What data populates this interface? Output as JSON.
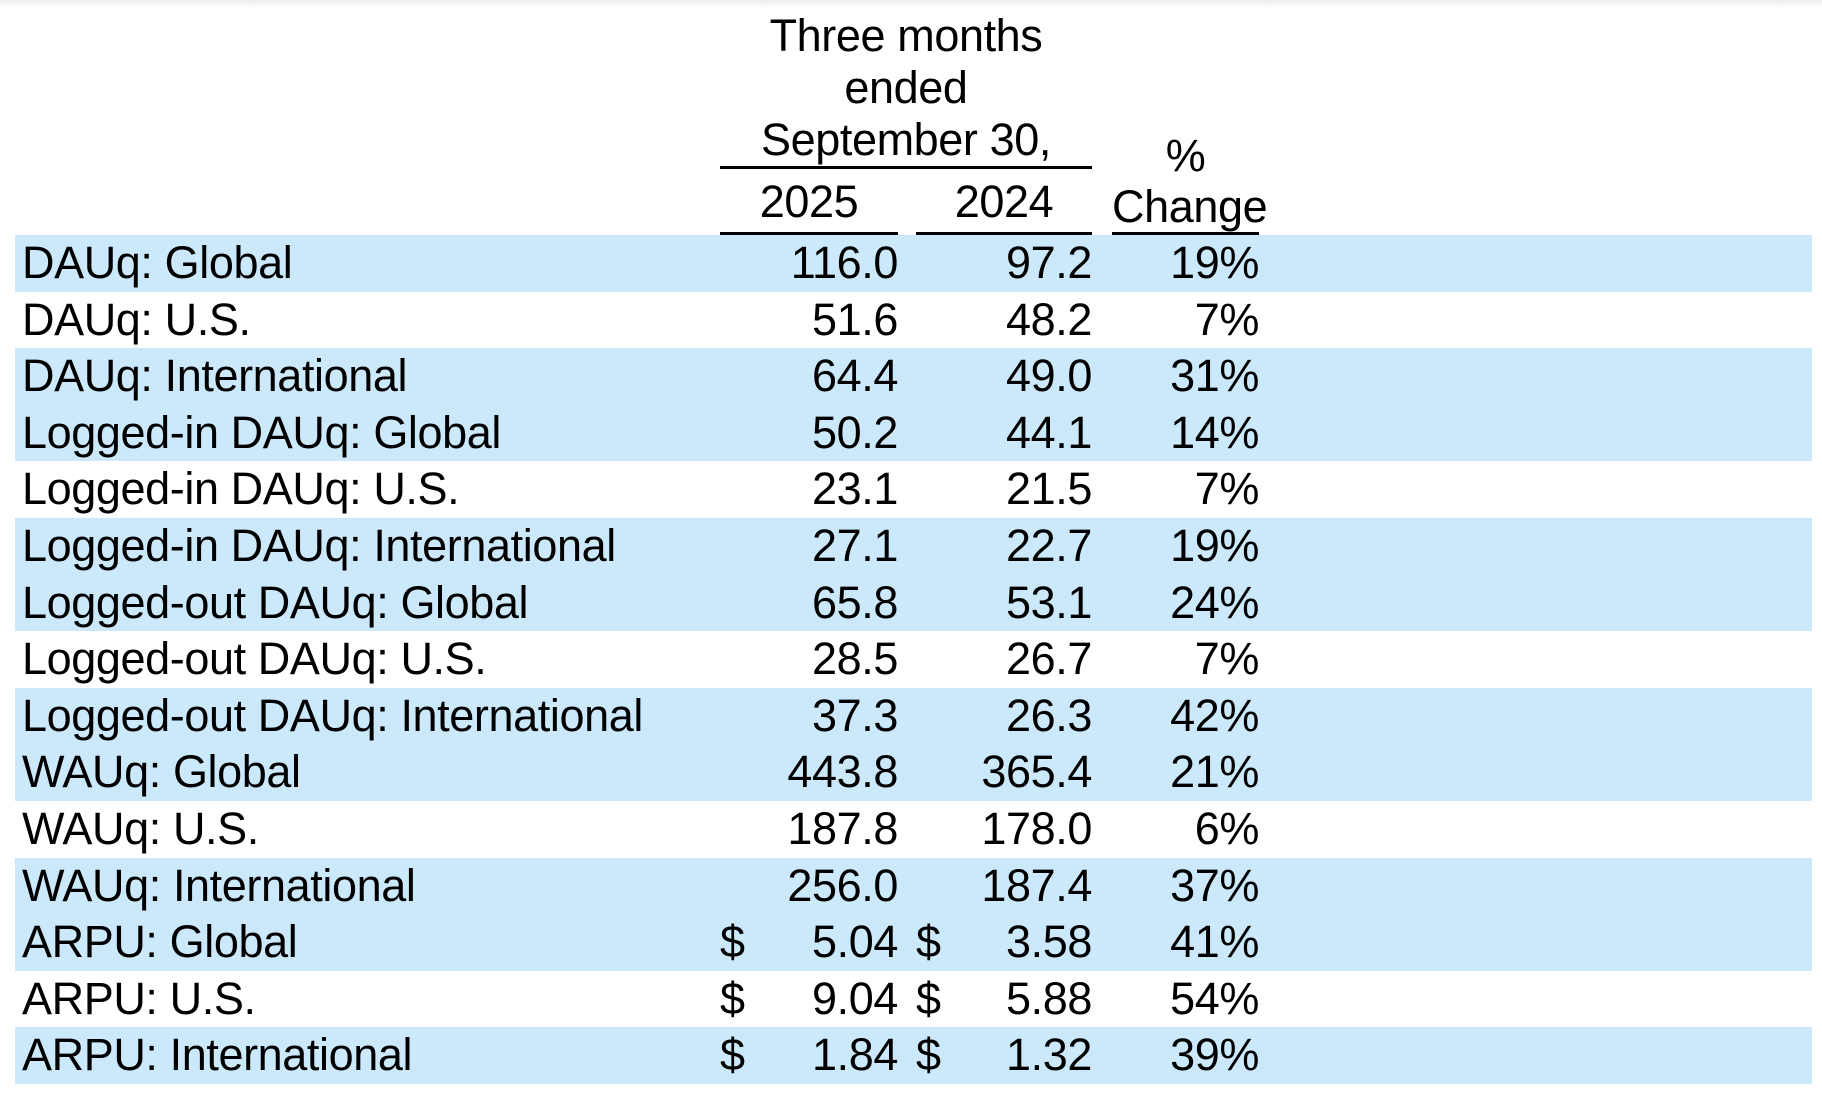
{
  "header": {
    "period_line1": "Three months ended",
    "period_line2": "September 30,",
    "year_columns": [
      "2025",
      "2024"
    ],
    "pct_symbol": "%",
    "pct_change_label": "Change"
  },
  "rows": [
    {
      "label": "DAUq: Global",
      "currency": "",
      "v2025": "116.0",
      "v2024": "97.2",
      "change": "19%",
      "shaded": true
    },
    {
      "label": "DAUq: U.S.",
      "currency": "",
      "v2025": "51.6",
      "v2024": "48.2",
      "change": "7%",
      "shaded": false
    },
    {
      "label": "DAUq: International",
      "currency": "",
      "v2025": "64.4",
      "v2024": "49.0",
      "change": "31%",
      "shaded": true
    },
    {
      "label": "Logged-in DAUq: Global",
      "currency": "",
      "v2025": "50.2",
      "v2024": "44.1",
      "change": "14%",
      "shaded": true
    },
    {
      "label": "Logged-in DAUq: U.S.",
      "currency": "",
      "v2025": "23.1",
      "v2024": "21.5",
      "change": "7%",
      "shaded": false
    },
    {
      "label": "Logged-in DAUq: International",
      "currency": "",
      "v2025": "27.1",
      "v2024": "22.7",
      "change": "19%",
      "shaded": true
    },
    {
      "label": "Logged-out DAUq: Global",
      "currency": "",
      "v2025": "65.8",
      "v2024": "53.1",
      "change": "24%",
      "shaded": true
    },
    {
      "label": "Logged-out DAUq: U.S.",
      "currency": "",
      "v2025": "28.5",
      "v2024": "26.7",
      "change": "7%",
      "shaded": false
    },
    {
      "label": "Logged-out DAUq: International",
      "currency": "",
      "v2025": "37.3",
      "v2024": "26.3",
      "change": "42%",
      "shaded": true
    },
    {
      "label": "WAUq: Global",
      "currency": "",
      "v2025": "443.8",
      "v2024": "365.4",
      "change": "21%",
      "shaded": true
    },
    {
      "label": "WAUq: U.S.",
      "currency": "",
      "v2025": "187.8",
      "v2024": "178.0",
      "change": "6%",
      "shaded": false
    },
    {
      "label": "WAUq: International",
      "currency": "",
      "v2025": "256.0",
      "v2024": "187.4",
      "change": "37%",
      "shaded": true
    },
    {
      "label": "ARPU: Global",
      "currency": "$",
      "v2025": "5.04",
      "v2024": "3.58",
      "change": "41%",
      "shaded": true
    },
    {
      "label": "ARPU: U.S.",
      "currency": "$",
      "v2025": "9.04",
      "v2024": "5.88",
      "change": "54%",
      "shaded": false
    },
    {
      "label": "ARPU: International",
      "currency": "$",
      "v2025": "1.84",
      "v2024": "1.32",
      "change": "39%",
      "shaded": true
    }
  ],
  "colors": {
    "row_highlight": "#cce9fb",
    "text": "#000000",
    "rule": "#000000"
  }
}
